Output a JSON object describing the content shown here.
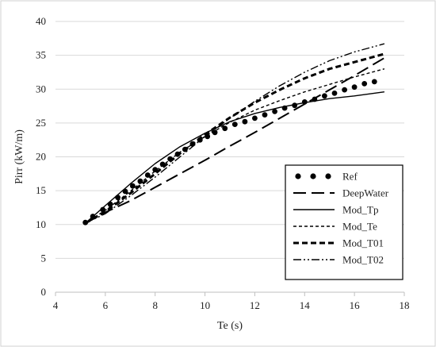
{
  "chart_data": {
    "type": "line",
    "title": "",
    "xlabel": "Te (s)",
    "ylabel": "Pirr (kW/m)",
    "xlim": [
      4,
      18
    ],
    "ylim": [
      0,
      40
    ],
    "xticks": [
      4,
      6,
      8,
      10,
      12,
      14,
      16,
      18
    ],
    "yticks": [
      0,
      5,
      10,
      15,
      20,
      25,
      30,
      35,
      40
    ],
    "grid": "horizontal",
    "legend": "bottom-right",
    "series": [
      {
        "name": "Ref",
        "style": "dots",
        "color": "#000000",
        "x": [
          5.2,
          5.5,
          5.9,
          6.2,
          6.5,
          6.8,
          7.1,
          7.4,
          7.7,
          8.0,
          8.3,
          8.6,
          8.9,
          9.2,
          9.5,
          9.8,
          10.1,
          10.4,
          10.8,
          11.2,
          11.6,
          12.0,
          12.4,
          12.8,
          13.2,
          13.6,
          14.0,
          14.4,
          14.8,
          15.2,
          15.6,
          16.0,
          16.4,
          16.8
        ],
        "y": [
          10.3,
          11.2,
          12.2,
          13.0,
          14.0,
          14.9,
          15.7,
          16.4,
          17.3,
          18.1,
          18.9,
          19.7,
          20.4,
          21.1,
          21.9,
          22.5,
          23.0,
          23.6,
          24.2,
          24.8,
          25.2,
          25.7,
          26.2,
          26.7,
          27.2,
          27.6,
          28.1,
          28.5,
          29.0,
          29.4,
          29.9,
          30.3,
          30.8,
          31.1
        ]
      },
      {
        "name": "DeepWater",
        "style": "long-dash",
        "color": "#000000",
        "x": [
          5.2,
          6.0,
          7.0,
          8.0,
          9.0,
          10.0,
          11.0,
          12.0,
          13.0,
          14.0,
          15.0,
          16.0,
          17.2
        ],
        "y": [
          10.2,
          11.8,
          13.5,
          15.5,
          17.5,
          19.5,
          21.6,
          23.6,
          25.7,
          27.8,
          29.9,
          32.0,
          34.6
        ]
      },
      {
        "name": "Mod_Tp",
        "style": "solid",
        "color": "#000000",
        "x": [
          5.2,
          6.0,
          7.0,
          8.0,
          9.0,
          10.0,
          11.0,
          12.0,
          13.0,
          14.0,
          15.0,
          16.0,
          17.2
        ],
        "y": [
          10.2,
          12.8,
          16.0,
          19.0,
          21.5,
          23.5,
          25.2,
          26.4,
          27.3,
          28.0,
          28.6,
          29.0,
          29.6
        ]
      },
      {
        "name": "Mod_Te",
        "style": "short-dash",
        "color": "#000000",
        "x": [
          5.2,
          6.0,
          7.0,
          8.0,
          9.0,
          10.0,
          11.0,
          12.0,
          13.0,
          14.0,
          15.0,
          16.0,
          17.2
        ],
        "y": [
          10.2,
          12.1,
          14.9,
          17.9,
          20.7,
          23.0,
          25.1,
          26.9,
          28.3,
          29.6,
          30.7,
          31.8,
          33.0
        ]
      },
      {
        "name": "Mod_T01",
        "style": "heavy-dash",
        "color": "#000000",
        "x": [
          5.2,
          6.0,
          7.0,
          8.0,
          9.0,
          10.0,
          11.0,
          12.0,
          13.0,
          14.0,
          15.0,
          16.0,
          17.2
        ],
        "y": [
          10.2,
          11.9,
          14.6,
          17.5,
          20.5,
          23.3,
          25.8,
          28.0,
          29.9,
          31.6,
          33.0,
          34.0,
          35.2
        ]
      },
      {
        "name": "Mod_T02",
        "style": "dash-dot-dot",
        "color": "#000000",
        "x": [
          5.2,
          6.0,
          7.0,
          8.0,
          9.0,
          10.0,
          11.0,
          12.0,
          13.0,
          14.0,
          15.0,
          16.0,
          17.2
        ],
        "y": [
          10.2,
          11.6,
          14.2,
          17.0,
          20.0,
          23.0,
          25.7,
          28.2,
          30.5,
          32.5,
          34.2,
          35.5,
          36.7
        ]
      }
    ]
  }
}
